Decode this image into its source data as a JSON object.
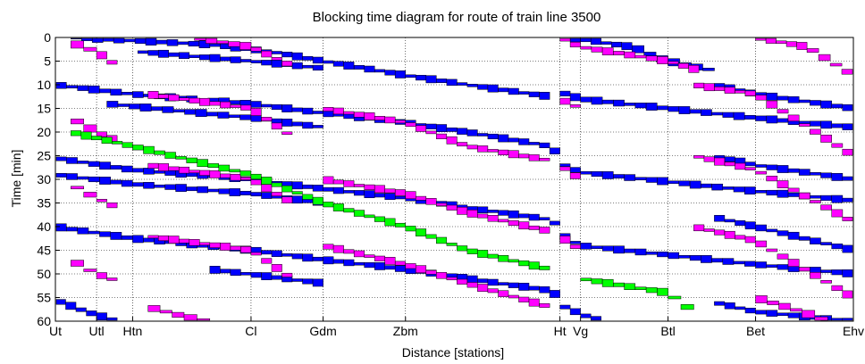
{
  "chart_data": {
    "type": "blocking-time-diagram",
    "title": "Blocking time diagram for route of train line 3500",
    "xlabel": "Distance [stations]",
    "ylabel": "Time [min]",
    "x_categories": [
      "Ut",
      "Utl",
      "Htn",
      "Cl",
      "Gdm",
      "Zbm",
      "Ht",
      "Vg",
      "Btl",
      "Bet",
      "Ehv"
    ],
    "station_km": [
      0,
      8,
      15,
      38,
      52,
      68,
      98,
      102,
      119,
      136,
      155
    ],
    "ylim": [
      0,
      60
    ],
    "yticks": [
      0,
      5,
      10,
      15,
      20,
      25,
      30,
      35,
      40,
      45,
      50,
      55,
      60
    ],
    "y_reversed": true,
    "grid": true,
    "colors": {
      "blue": "#0000ff",
      "magenta": "#ff00ff",
      "green": "#00ff00"
    },
    "series": [
      {
        "color": "blue",
        "points": [
          [
            3,
            0
          ],
          [
            30,
            1.5
          ],
          [
            42,
            3
          ],
          [
            52,
            5
          ],
          [
            68,
            8
          ],
          [
            80,
            10
          ],
          [
            96,
            12.5
          ]
        ]
      },
      {
        "color": "blue",
        "points": [
          [
            0,
            10
          ],
          [
            15,
            12
          ],
          [
            38,
            14
          ],
          [
            52,
            16
          ],
          [
            68,
            18
          ],
          [
            80,
            20
          ],
          [
            96,
            23
          ],
          [
            98,
            25
          ]
        ]
      },
      {
        "color": "blue",
        "points": [
          [
            0,
            25.5
          ],
          [
            15,
            28
          ],
          [
            38,
            30
          ],
          [
            52,
            32
          ],
          [
            68,
            34
          ],
          [
            80,
            36
          ],
          [
            96,
            38.5
          ],
          [
            98,
            40
          ]
        ]
      },
      {
        "color": "blue",
        "points": [
          [
            0,
            40
          ],
          [
            15,
            42.5
          ],
          [
            38,
            45
          ],
          [
            52,
            47
          ],
          [
            68,
            49
          ],
          [
            80,
            51
          ],
          [
            96,
            53.5
          ],
          [
            98,
            55
          ]
        ]
      },
      {
        "color": "blue",
        "points": [
          [
            0,
            55.5
          ],
          [
            6,
            58
          ],
          [
            12,
            60
          ]
        ]
      },
      {
        "color": "blue",
        "points": [
          [
            16,
            3
          ],
          [
            38,
            5
          ],
          [
            52,
            6.5
          ]
        ]
      },
      {
        "color": "blue",
        "points": [
          [
            10,
            14
          ],
          [
            38,
            17
          ],
          [
            52,
            19
          ]
        ]
      },
      {
        "color": "blue",
        "points": [
          [
            0,
            29
          ],
          [
            15,
            31
          ],
          [
            38,
            33
          ],
          [
            52,
            35
          ]
        ]
      },
      {
        "color": "blue",
        "points": [
          [
            30,
            49
          ],
          [
            52,
            52
          ]
        ]
      },
      {
        "color": "blue",
        "points": [
          [
            98,
            11.5
          ],
          [
            102,
            13
          ],
          [
            119,
            15
          ],
          [
            136,
            17
          ],
          [
            155,
            19
          ]
        ]
      },
      {
        "color": "blue",
        "points": [
          [
            98,
            26.5
          ],
          [
            102,
            28.5
          ],
          [
            119,
            30.5
          ],
          [
            136,
            32.5
          ],
          [
            155,
            34.5
          ]
        ]
      },
      {
        "color": "blue",
        "points": [
          [
            98,
            41.5
          ],
          [
            102,
            44
          ],
          [
            119,
            46
          ],
          [
            136,
            48
          ],
          [
            155,
            50
          ]
        ]
      },
      {
        "color": "blue",
        "points": [
          [
            98,
            56.5
          ],
          [
            102,
            58.5
          ],
          [
            106,
            60
          ]
        ]
      },
      {
        "color": "blue",
        "points": [
          [
            100,
            0
          ],
          [
            112,
            2
          ],
          [
            119,
            5
          ],
          [
            128,
            7
          ]
        ]
      },
      {
        "color": "blue",
        "points": [
          [
            128,
            10
          ],
          [
            136,
            12
          ],
          [
            155,
            15
          ]
        ]
      },
      {
        "color": "blue",
        "points": [
          [
            128,
            25
          ],
          [
            136,
            27
          ],
          [
            155,
            30
          ]
        ]
      },
      {
        "color": "blue",
        "points": [
          [
            128,
            38
          ],
          [
            136,
            40
          ],
          [
            155,
            45
          ]
        ]
      },
      {
        "color": "blue",
        "points": [
          [
            128,
            56
          ],
          [
            136,
            58
          ],
          [
            155,
            60
          ]
        ]
      },
      {
        "color": "magenta",
        "points": [
          [
            3,
            1
          ],
          [
            8,
            3
          ],
          [
            12,
            6
          ]
        ]
      },
      {
        "color": "magenta",
        "points": [
          [
            3,
            17
          ],
          [
            8,
            20
          ],
          [
            12,
            22
          ]
        ]
      },
      {
        "color": "magenta",
        "points": [
          [
            3,
            31
          ],
          [
            8,
            34
          ],
          [
            12,
            36
          ]
        ]
      },
      {
        "color": "magenta",
        "points": [
          [
            3,
            47
          ],
          [
            8,
            50
          ],
          [
            12,
            51.5
          ]
        ]
      },
      {
        "color": "magenta",
        "points": [
          [
            27,
            0
          ],
          [
            38,
            2
          ],
          [
            46,
            6
          ]
        ]
      },
      {
        "color": "magenta",
        "points": [
          [
            18,
            12
          ],
          [
            38,
            15
          ],
          [
            46,
            21
          ]
        ]
      },
      {
        "color": "magenta",
        "points": [
          [
            18,
            27
          ],
          [
            38,
            30
          ],
          [
            46,
            35
          ]
        ]
      },
      {
        "color": "magenta",
        "points": [
          [
            18,
            42
          ],
          [
            38,
            45
          ],
          [
            46,
            51
          ]
        ]
      },
      {
        "color": "magenta",
        "points": [
          [
            18,
            57
          ],
          [
            25,
            59
          ],
          [
            30,
            60
          ]
        ]
      },
      {
        "color": "magenta",
        "points": [
          [
            52,
            15
          ],
          [
            68,
            18
          ],
          [
            80,
            23
          ],
          [
            96,
            26
          ]
        ]
      },
      {
        "color": "magenta",
        "points": [
          [
            52,
            30
          ],
          [
            68,
            33
          ],
          [
            80,
            37
          ],
          [
            96,
            41
          ]
        ]
      },
      {
        "color": "magenta",
        "points": [
          [
            52,
            44
          ],
          [
            68,
            48
          ],
          [
            80,
            52
          ],
          [
            96,
            57
          ]
        ]
      },
      {
        "color": "magenta",
        "points": [
          [
            98,
            0
          ],
          [
            102,
            2
          ],
          [
            119,
            5
          ],
          [
            125,
            7
          ]
        ]
      },
      {
        "color": "magenta",
        "points": [
          [
            98,
            13
          ],
          [
            102,
            15
          ]
        ]
      },
      {
        "color": "magenta",
        "points": [
          [
            98,
            27
          ],
          [
            102,
            30
          ]
        ]
      },
      {
        "color": "magenta",
        "points": [
          [
            98,
            42
          ],
          [
            102,
            45
          ]
        ]
      },
      {
        "color": "magenta",
        "points": [
          [
            124,
            10
          ],
          [
            136,
            12
          ],
          [
            155,
            25
          ]
        ]
      },
      {
        "color": "magenta",
        "points": [
          [
            124,
            25
          ],
          [
            136,
            28
          ],
          [
            155,
            39
          ]
        ]
      },
      {
        "color": "magenta",
        "points": [
          [
            124,
            40
          ],
          [
            136,
            43
          ],
          [
            155,
            55
          ]
        ]
      },
      {
        "color": "magenta",
        "points": [
          [
            136,
            0
          ],
          [
            146,
            2
          ],
          [
            155,
            8
          ]
        ]
      },
      {
        "color": "magenta",
        "points": [
          [
            136,
            55
          ],
          [
            145,
            58
          ],
          [
            150,
            60
          ]
        ]
      },
      {
        "color": "green",
        "points": [
          [
            3,
            20
          ],
          [
            15,
            23
          ],
          [
            38,
            29
          ],
          [
            52,
            35
          ],
          [
            68,
            40
          ],
          [
            80,
            45
          ],
          [
            96,
            49
          ]
        ]
      },
      {
        "color": "green",
        "points": [
          [
            102,
            51
          ],
          [
            119,
            54
          ],
          [
            124,
            58
          ]
        ]
      }
    ]
  }
}
